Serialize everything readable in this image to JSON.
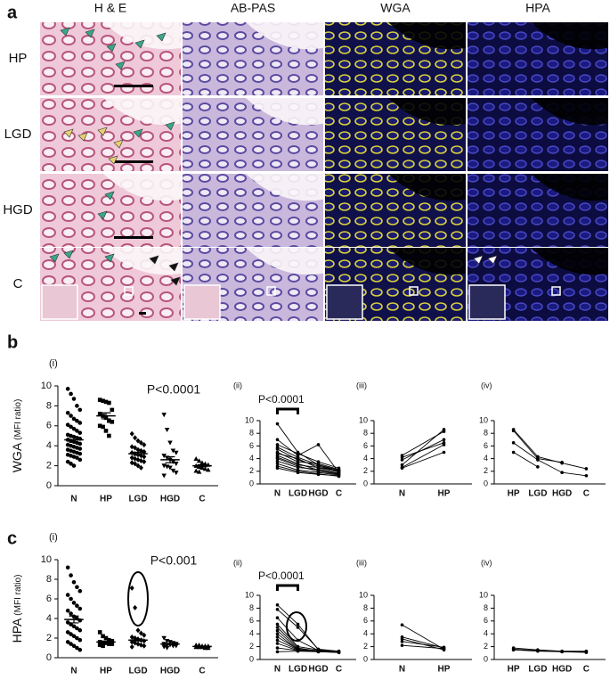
{
  "panel_a": {
    "label": "a",
    "columns": [
      "H & E",
      "AB-PAS",
      "WGA",
      "HPA"
    ],
    "rows": [
      "HP",
      "LGD",
      "HGD",
      "C"
    ]
  },
  "panel_b": {
    "label": "b"
  },
  "panel_c": {
    "label": "c"
  },
  "chart_data": [
    {
      "type": "dot",
      "panel": "(i)",
      "annotation": "P<0.0001",
      "ylabel": "WGA",
      "ylabel_unit": "(MFI ratio)",
      "categories": [
        "N",
        "HP",
        "LGD",
        "HGD",
        "C"
      ],
      "ylim": [
        0,
        10
      ],
      "yticks": [
        0,
        2,
        4,
        6,
        8,
        10
      ],
      "groups": [
        {
          "marker": "circle",
          "values": [
            9.7,
            9.2,
            8.7,
            8.0,
            7.6,
            7.3,
            7.0,
            6.7,
            6.5,
            6.3,
            6.1,
            5.9,
            5.7,
            5.5,
            5.3,
            5.1,
            5.0,
            4.9,
            4.8,
            4.7,
            4.6,
            4.5,
            4.4,
            4.3,
            4.2,
            4.1,
            4.0,
            3.9,
            3.8,
            3.7,
            3.6,
            3.5,
            3.4,
            3.3,
            3.2,
            3.1,
            3.0,
            2.9,
            2.8,
            2.6,
            2.4,
            2.2,
            2.0
          ],
          "mean": 4.6,
          "sem": 0.25
        },
        {
          "marker": "square",
          "values": [
            8.6,
            8.5,
            8.4,
            8.3,
            7.6,
            7.2,
            7.0,
            6.8,
            6.5,
            6.4,
            6.0,
            5.9,
            5.5,
            5.0
          ],
          "mean": 7.0,
          "sem": 0.3
        },
        {
          "marker": "diamond",
          "values": [
            5.2,
            4.8,
            4.5,
            4.3,
            4.1,
            3.9,
            3.8,
            3.6,
            3.5,
            3.4,
            3.3,
            3.2,
            3.1,
            3.0,
            2.9,
            2.8,
            2.7,
            2.6,
            2.5,
            2.4,
            2.3,
            2.2,
            2.0,
            1.8
          ],
          "mean": 3.2,
          "sem": 0.15
        },
        {
          "marker": "triangle-down",
          "values": [
            7.1,
            5.6,
            4.3,
            3.5,
            3.3,
            3.0,
            2.8,
            2.6,
            2.4,
            2.2,
            2.0,
            1.9,
            1.8,
            1.5,
            1.3,
            1.0
          ],
          "mean": 2.6,
          "sem": 0.3
        },
        {
          "marker": "triangle-up",
          "values": [
            2.7,
            2.5,
            2.3,
            2.2,
            2.1,
            2.0,
            1.9,
            1.8,
            1.7,
            1.6,
            1.5,
            1.4
          ],
          "mean": 2.0,
          "sem": 0.1
        }
      ]
    },
    {
      "type": "paired",
      "panel": "(ii)",
      "annotation": "P<0.0001",
      "categories": [
        "N",
        "LGD",
        "HGD",
        "C"
      ],
      "ylim": [
        0,
        10
      ],
      "yticks": [
        0,
        2,
        4,
        6,
        8,
        10
      ],
      "lines": [
        [
          9.5,
          5.0,
          3.0,
          2.0
        ],
        [
          7.0,
          4.5,
          6.2,
          1.8
        ],
        [
          6.2,
          4.8,
          3.5,
          2.5
        ],
        [
          5.8,
          4.2,
          3.0,
          2.2
        ],
        [
          5.5,
          3.8,
          2.8,
          2.0
        ],
        [
          5.0,
          3.5,
          3.2,
          2.3
        ],
        [
          4.8,
          4.0,
          2.5,
          1.9
        ],
        [
          4.5,
          3.2,
          2.2,
          1.6
        ],
        [
          4.2,
          3.0,
          2.6,
          2.1
        ],
        [
          4.0,
          2.8,
          2.0,
          1.5
        ],
        [
          3.6,
          2.6,
          2.3,
          1.7
        ],
        [
          3.2,
          2.2,
          1.8,
          1.4
        ],
        [
          2.8,
          2.0,
          1.6,
          1.2
        ],
        [
          2.5,
          1.8,
          1.5,
          1.3
        ]
      ]
    },
    {
      "type": "paired",
      "panel": "(iii)",
      "categories": [
        "N",
        "HP"
      ],
      "ylim": [
        0,
        10
      ],
      "yticks": [
        0,
        2,
        4,
        6,
        8,
        10
      ],
      "lines": [
        [
          2.5,
          5.0
        ],
        [
          3.0,
          8.6
        ],
        [
          3.8,
          7.0
        ],
        [
          4.2,
          6.5
        ],
        [
          4.5,
          8.3
        ],
        [
          2.6,
          6.2
        ]
      ]
    },
    {
      "type": "paired",
      "panel": "(iv)",
      "categories": [
        "HP",
        "LGD",
        "HGD",
        "C"
      ],
      "ylim": [
        0,
        10
      ],
      "yticks": [
        0,
        2,
        4,
        6,
        8,
        10
      ],
      "lines": [
        [
          8.6,
          4.3,
          3.3,
          2.4
        ],
        [
          8.4,
          4.0,
          3.4,
          null
        ],
        [
          6.5,
          3.8,
          1.8,
          1.3
        ],
        [
          5.0,
          2.7,
          null,
          null
        ]
      ]
    },
    {
      "type": "dot",
      "panel": "(i)",
      "annotation": "P<0.001",
      "ylabel": "HPA",
      "ylabel_unit": "(MFI ratio)",
      "categories": [
        "N",
        "HP",
        "LGD",
        "HGD",
        "C"
      ],
      "ylim": [
        0,
        10
      ],
      "yticks": [
        0,
        2,
        4,
        6,
        8,
        10
      ],
      "groups": [
        {
          "marker": "circle",
          "values": [
            9.2,
            8.4,
            7.7,
            7.2,
            6.8,
            6.4,
            6.0,
            5.6,
            5.3,
            5.0,
            4.8,
            4.5,
            4.2,
            4.0,
            3.8,
            3.6,
            3.4,
            3.2,
            3.0,
            2.8,
            2.6,
            2.4,
            2.2,
            2.0,
            1.8,
            1.6,
            1.4,
            1.2,
            1.0,
            0.8
          ],
          "mean": 3.9,
          "sem": 0.35
        },
        {
          "marker": "square",
          "values": [
            2.6,
            2.2,
            2.0,
            1.8,
            1.7,
            1.6,
            1.5,
            1.5,
            1.4,
            1.4,
            1.3,
            1.2
          ],
          "mean": 1.6,
          "sem": 0.1
        },
        {
          "marker": "diamond",
          "values": [
            7.1,
            5.1,
            2.8,
            2.5,
            2.3,
            2.1,
            2.0,
            1.9,
            1.8,
            1.7,
            1.6,
            1.5,
            1.4,
            1.3,
            1.2,
            1.1
          ],
          "mean": 1.8,
          "sem": 0.1
        },
        {
          "marker": "triangle-down",
          "values": [
            2.0,
            1.7,
            1.6,
            1.5,
            1.4,
            1.4,
            1.3,
            1.3,
            1.2,
            1.2,
            1.1,
            1.0
          ],
          "mean": 1.4,
          "sem": 0.05
        },
        {
          "marker": "triangle-up",
          "values": [
            1.3,
            1.3,
            1.2,
            1.2,
            1.2,
            1.1,
            1.1,
            1.1,
            1.0,
            1.0
          ],
          "mean": 1.15,
          "sem": 0.03
        }
      ]
    },
    {
      "type": "paired",
      "panel": "(ii)",
      "annotation": "P<0.0001",
      "categories": [
        "N",
        "LGD",
        "HGD",
        "C"
      ],
      "ylim": [
        0,
        10
      ],
      "yticks": [
        0,
        2,
        4,
        6,
        8,
        10
      ],
      "lines": [
        [
          8.5,
          5.5,
          1.5,
          1.2
        ],
        [
          7.8,
          5.0,
          1.6,
          1.3
        ],
        [
          6.5,
          3.0,
          1.4,
          1.2
        ],
        [
          5.5,
          2.0,
          1.5,
          1.1
        ],
        [
          5.0,
          1.8,
          1.3,
          1.2
        ],
        [
          4.5,
          1.6,
          1.4,
          1.2
        ],
        [
          4.0,
          1.5,
          1.3,
          1.1
        ],
        [
          3.5,
          1.6,
          1.2,
          1.2
        ],
        [
          3.0,
          1.5,
          1.3,
          1.1
        ],
        [
          2.5,
          1.4,
          1.2,
          1.1
        ],
        [
          1.8,
          1.4,
          1.3,
          1.2
        ],
        [
          1.2,
          1.3,
          1.2,
          1.1
        ]
      ]
    },
    {
      "type": "paired",
      "panel": "(iii)",
      "categories": [
        "N",
        "HP"
      ],
      "ylim": [
        0,
        10
      ],
      "yticks": [
        0,
        2,
        4,
        6,
        8,
        10
      ],
      "lines": [
        [
          5.4,
          1.6
        ],
        [
          3.5,
          1.8
        ],
        [
          3.2,
          1.5
        ],
        [
          2.8,
          1.9
        ],
        [
          2.2,
          1.7
        ]
      ]
    },
    {
      "type": "paired",
      "panel": "(iv)",
      "categories": [
        "HP",
        "LGD",
        "HGD",
        "C"
      ],
      "ylim": [
        0,
        10
      ],
      "yticks": [
        0,
        2,
        4,
        6,
        8,
        10
      ],
      "lines": [
        [
          1.8,
          1.5,
          1.3,
          1.3
        ],
        [
          1.6,
          1.4,
          1.2,
          1.2
        ],
        [
          1.5,
          1.3,
          1.2,
          1.1
        ]
      ]
    }
  ]
}
